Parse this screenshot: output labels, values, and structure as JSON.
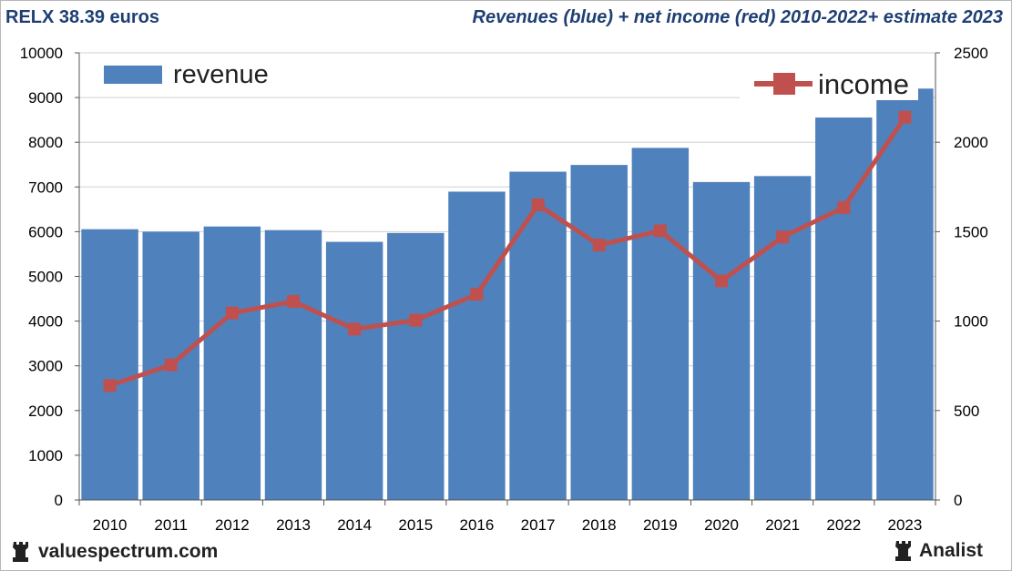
{
  "header": {
    "left_title": "RELX 38.39 euros",
    "right_title": "Revenues (blue) + net income (red) 2010-2022+ estimate 2023"
  },
  "footer": {
    "site": "valuespectrum.com",
    "brand": "Analist"
  },
  "colors": {
    "bar": "#4f81bd",
    "line": "#c0504d",
    "grid": "#d0d0d0",
    "text": "#1f3f73"
  },
  "chart_data": {
    "type": "bar",
    "categories": [
      "2010",
      "2011",
      "2012",
      "2013",
      "2014",
      "2015",
      "2016",
      "2017",
      "2018",
      "2019",
      "2020",
      "2021",
      "2022",
      "2023"
    ],
    "series": [
      {
        "name": "revenue",
        "axis": "left",
        "kind": "bar",
        "values": [
          6055,
          6000,
          6116,
          6035,
          5773,
          5971,
          6895,
          7341,
          7492,
          7874,
          7110,
          7244,
          8553,
          9200
        ]
      },
      {
        "name": "income",
        "axis": "right",
        "kind": "line",
        "values": [
          640,
          755,
          1045,
          1110,
          955,
          1005,
          1150,
          1650,
          1425,
          1505,
          1225,
          1470,
          1635,
          2140
        ]
      }
    ],
    "y_left": {
      "min": 0,
      "max": 10000,
      "ticks": [
        0,
        1000,
        2000,
        3000,
        4000,
        5000,
        6000,
        7000,
        8000,
        9000,
        10000
      ]
    },
    "y_right": {
      "min": 0,
      "max": 2500,
      "ticks": [
        0,
        500,
        1000,
        1500,
        2000,
        2500
      ]
    },
    "legend": {
      "revenue_label": "revenue",
      "income_label": "income"
    },
    "grid": true
  }
}
